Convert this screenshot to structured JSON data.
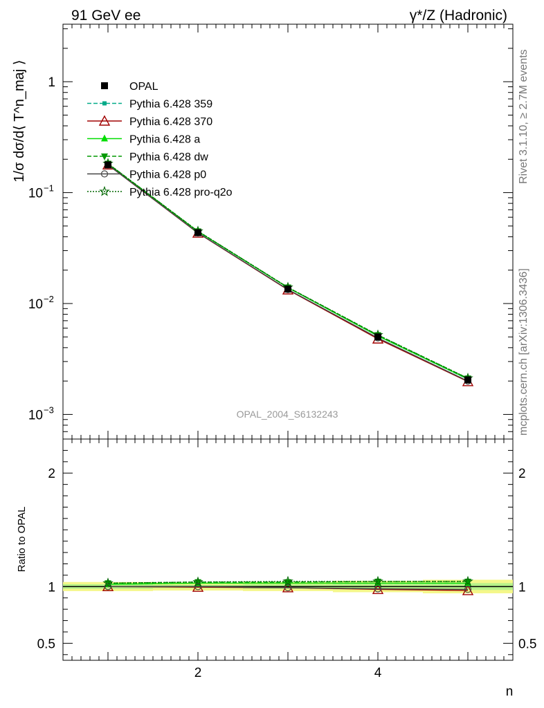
{
  "header": {
    "left": "91 GeV ee",
    "right": "γ*/Z (Hadronic)"
  },
  "side_labels": {
    "rivet": "Rivet 3.1.10, ≥ 2.7M events",
    "mcplots": "mcplots.cern.ch [arXiv:1306.3436]"
  },
  "watermark": "OPAL_2004_S6132243",
  "chart_data": [
    {
      "type": "line",
      "scale": "log",
      "ylabel": "1/σ dσ/d⟨ T^n_maj ⟩",
      "xlim": [
        0.5,
        5.5
      ],
      "ylim": [
        0.0006,
        3.3
      ],
      "yticks": [
        {
          "value": 0.001,
          "label": "10",
          "exp": "−3"
        },
        {
          "value": 0.01,
          "label": "10",
          "exp": "−2"
        },
        {
          "value": 0.1,
          "label": "10",
          "exp": "−1"
        },
        {
          "value": 1,
          "label": "1",
          "exp": ""
        }
      ],
      "x": [
        1,
        2,
        3,
        4,
        5
      ],
      "data": {
        "name": "OPAL",
        "values": [
          0.178,
          0.0435,
          0.0135,
          0.005,
          0.00205
        ],
        "color": "#000000"
      },
      "series": [
        {
          "name": "Pythia 6.428 359",
          "color": "#00aa88",
          "dash": "6,3",
          "marker": "square-small",
          "values": [
            0.182,
            0.0445,
            0.0139,
            0.0051,
            0.00208
          ]
        },
        {
          "name": "Pythia 6.428 370",
          "color": "#a00000",
          "dash": "",
          "marker": "triangle-open",
          "values": [
            0.178,
            0.0432,
            0.0133,
            0.0048,
            0.00198
          ]
        },
        {
          "name": "Pythia 6.428 a",
          "color": "#00dd00",
          "dash": "",
          "marker": "triangle",
          "values": [
            0.181,
            0.0446,
            0.0139,
            0.0051,
            0.00209
          ]
        },
        {
          "name": "Pythia 6.428 dw",
          "color": "#009900",
          "dash": "6,3",
          "marker": "triangle-down",
          "values": [
            0.183,
            0.0449,
            0.014,
            0.0052,
            0.00212
          ]
        },
        {
          "name": "Pythia 6.428 p0",
          "color": "#444444",
          "dash": "",
          "marker": "circle-open",
          "values": [
            0.178,
            0.0434,
            0.0134,
            0.0049,
            0.002
          ]
        },
        {
          "name": "Pythia 6.428 pro-q2o",
          "color": "#006600",
          "dash": "2,2",
          "marker": "star",
          "values": [
            0.183,
            0.0449,
            0.014,
            0.0052,
            0.00212
          ]
        }
      ]
    },
    {
      "type": "line",
      "ylabel": "Ratio to OPAL",
      "xlabel": "n",
      "xlim": [
        0.5,
        5.5
      ],
      "ylim": [
        0.35,
        2.3
      ],
      "xticks": [
        2,
        4
      ],
      "yticks": [
        0.5,
        1,
        2
      ],
      "x": [
        1,
        2,
        3,
        4,
        5
      ],
      "band": {
        "yellow": [
          [
            0.96,
            1.04
          ],
          [
            0.965,
            1.035
          ],
          [
            0.96,
            1.04
          ],
          [
            0.95,
            1.05
          ],
          [
            0.94,
            1.06
          ]
        ],
        "green": [
          [
            0.98,
            1.02
          ],
          [
            0.985,
            1.015
          ],
          [
            0.98,
            1.02
          ],
          [
            0.975,
            1.025
          ],
          [
            0.97,
            1.03
          ]
        ]
      },
      "series": [
        {
          "name": "Pythia 6.428 359",
          "values": [
            1.02,
            1.03,
            1.03,
            1.03,
            1.03
          ]
        },
        {
          "name": "Pythia 6.428 370",
          "values": [
            1.0,
            0.995,
            0.99,
            0.975,
            0.965
          ]
        },
        {
          "name": "Pythia 6.428 a",
          "values": [
            1.02,
            1.03,
            1.03,
            1.03,
            1.03
          ]
        },
        {
          "name": "Pythia 6.428 dw",
          "values": [
            1.03,
            1.04,
            1.04,
            1.045,
            1.045
          ]
        },
        {
          "name": "Pythia 6.428 p0",
          "values": [
            1.0,
            1.0,
            0.99,
            0.98,
            0.975
          ]
        },
        {
          "name": "Pythia 6.428 pro-q2o",
          "values": [
            1.03,
            1.04,
            1.045,
            1.045,
            1.045
          ]
        }
      ]
    }
  ]
}
